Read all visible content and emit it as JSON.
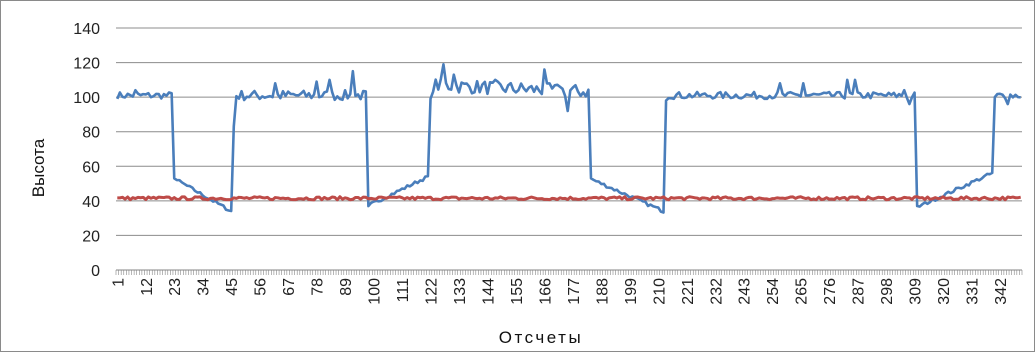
{
  "chart_data": {
    "type": "line",
    "title": "",
    "xlabel": "Отсчеты",
    "ylabel": "Высота",
    "ylim": [
      0,
      140
    ],
    "yticks": [
      "0",
      "20",
      "40",
      "60",
      "80",
      "100",
      "120",
      "140"
    ],
    "x_tick_labels": [
      "1",
      "12",
      "23",
      "34",
      "45",
      "56",
      "67",
      "78",
      "89",
      "100",
      "111",
      "122",
      "133",
      "144",
      "155",
      "166",
      "177",
      "188",
      "199",
      "210",
      "221",
      "232",
      "243",
      "254",
      "265",
      "276",
      "287",
      "298",
      "309",
      "320",
      "331",
      "342"
    ],
    "x_count": 350,
    "grid": "horizontal",
    "legend": "none",
    "series": [
      {
        "color": "#4a7ebb",
        "segments": [
          {
            "x0": 1,
            "x1": 22,
            "start": 101,
            "end": 101,
            "jitter": 2
          },
          {
            "x0": 23,
            "x1": 23,
            "start": 53,
            "end": 53,
            "jitter": 0
          },
          {
            "x0": 24,
            "x1": 45,
            "start": 52,
            "end": 34,
            "jitter": 1
          },
          {
            "x0": 46,
            "x1": 46,
            "start": 83,
            "end": 83,
            "jitter": 0
          },
          {
            "x0": 47,
            "x1": 97,
            "start": 101,
            "end": 101,
            "jitter": 3
          },
          {
            "x0": 98,
            "x1": 98,
            "start": 37,
            "end": 37,
            "jitter": 0
          },
          {
            "x0": 99,
            "x1": 121,
            "start": 38,
            "end": 54,
            "jitter": 1
          },
          {
            "x0": 122,
            "x1": 122,
            "start": 99,
            "end": 99,
            "jitter": 0
          },
          {
            "x0": 123,
            "x1": 183,
            "start": 107,
            "end": 103,
            "jitter": 4
          },
          {
            "x0": 184,
            "x1": 184,
            "start": 53,
            "end": 53,
            "jitter": 0
          },
          {
            "x0": 185,
            "x1": 212,
            "start": 52,
            "end": 34,
            "jitter": 1
          },
          {
            "x0": 213,
            "x1": 213,
            "start": 98,
            "end": 98,
            "jitter": 0
          },
          {
            "x0": 214,
            "x1": 309,
            "start": 101,
            "end": 101,
            "jitter": 2
          },
          {
            "x0": 310,
            "x1": 310,
            "start": 37,
            "end": 37,
            "jitter": 0
          },
          {
            "x0": 311,
            "x1": 339,
            "start": 37,
            "end": 56,
            "jitter": 1
          },
          {
            "x0": 340,
            "x1": 340,
            "start": 100,
            "end": 100,
            "jitter": 0
          },
          {
            "x0": 341,
            "x1": 350,
            "start": 101,
            "end": 101,
            "jitter": 2
          }
        ],
        "spikes": [
          [
            8,
            104
          ],
          [
            62,
            108
          ],
          [
            78,
            109
          ],
          [
            83,
            110
          ],
          [
            92,
            115
          ],
          [
            127,
            119
          ],
          [
            131,
            113
          ],
          [
            147,
            110
          ],
          [
            166,
            116
          ],
          [
            172,
            106
          ],
          [
            175,
            92
          ],
          [
            257,
            108
          ],
          [
            266,
            108
          ],
          [
            283,
            110
          ],
          [
            286,
            110
          ],
          [
            305,
            104
          ],
          [
            307,
            96
          ],
          [
            345,
            96
          ]
        ]
      },
      {
        "color": "#be4b48",
        "segments": [
          {
            "x0": 1,
            "x1": 350,
            "start": 41.5,
            "end": 41.5,
            "jitter": 0.9
          }
        ],
        "spikes": []
      }
    ]
  }
}
